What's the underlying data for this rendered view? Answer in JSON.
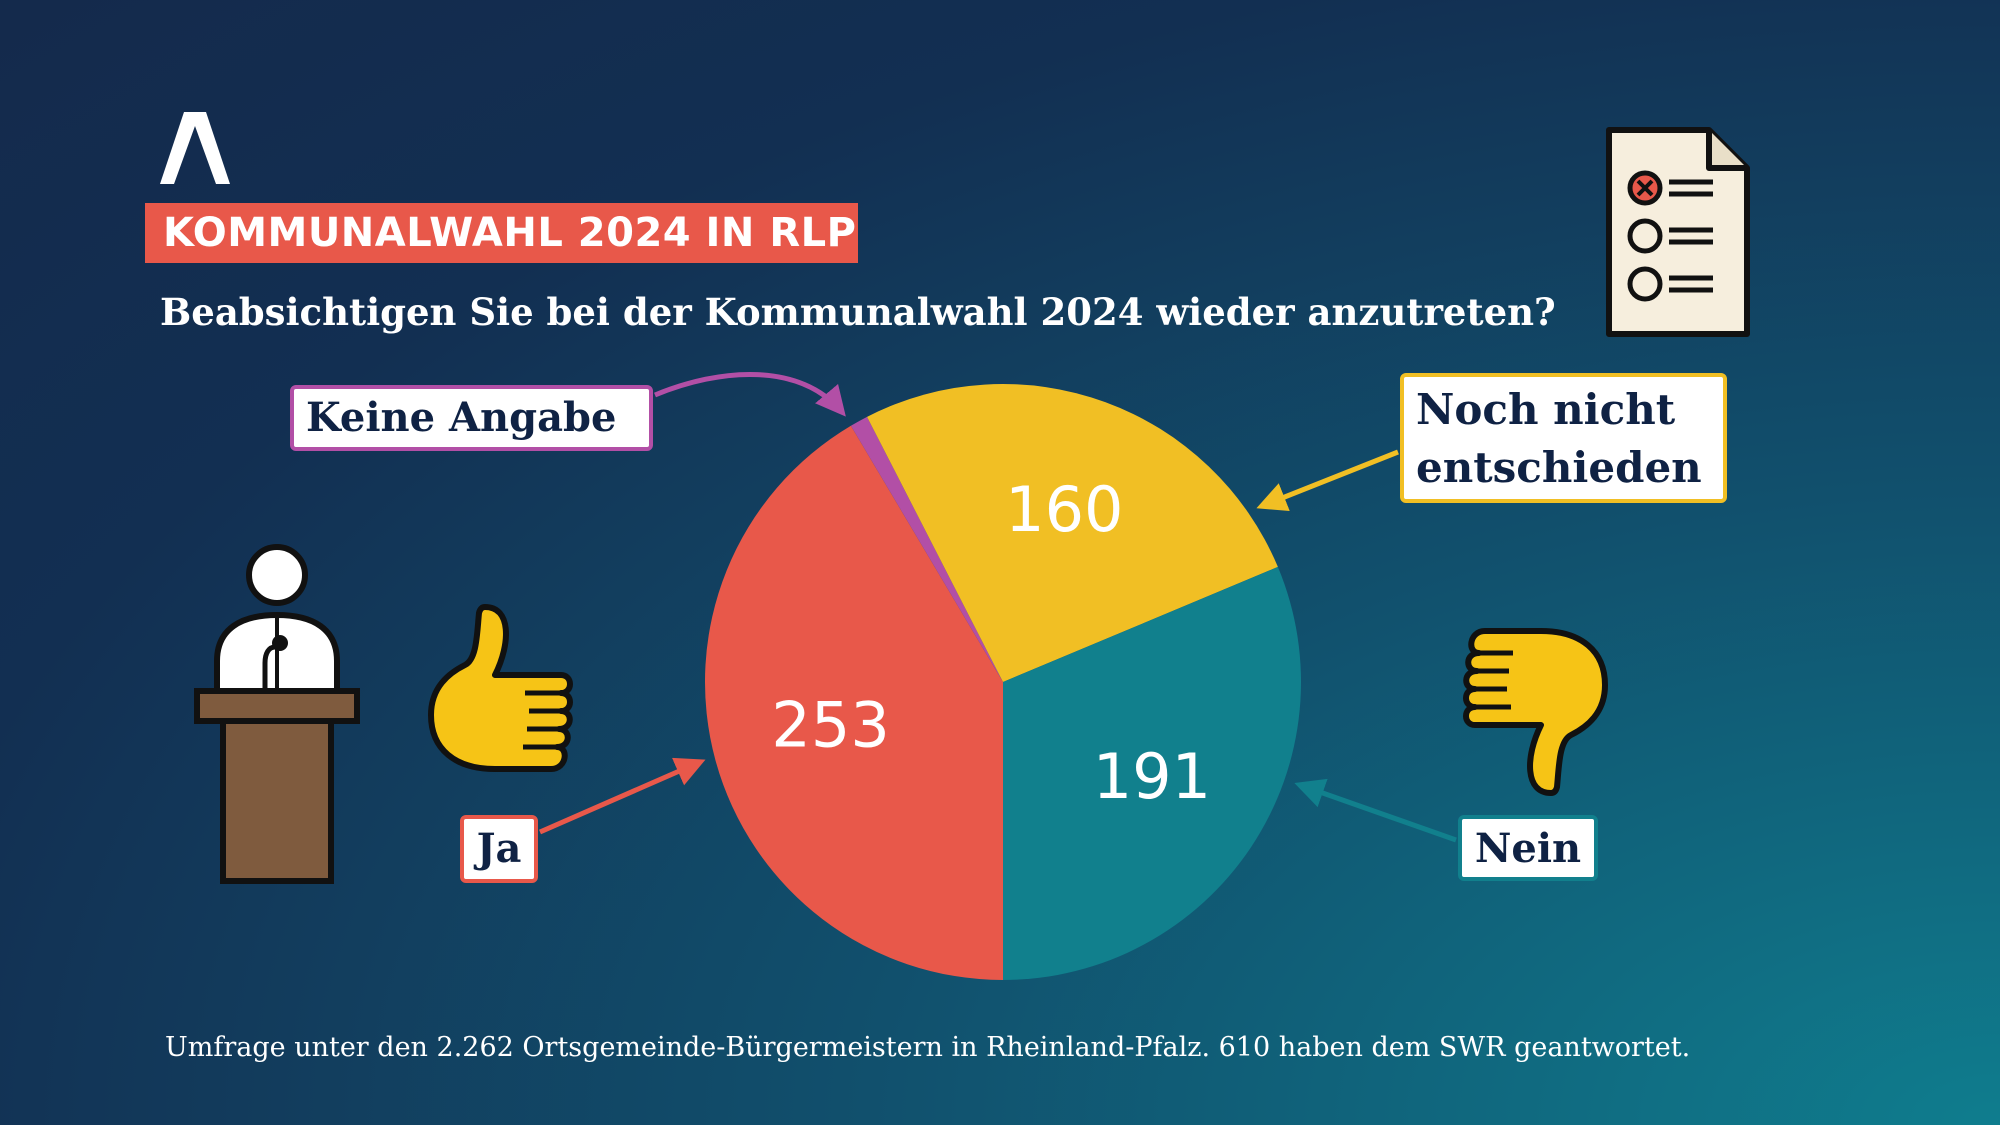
{
  "header": {
    "badge": "KOMMUNALWAHL 2024 IN RLP",
    "question": "Beabsichtigen Sie bei der Kommunalwahl 2024 wieder anzutreten?"
  },
  "footnote": "Umfrage unter den 2.262 Ortsgemeinde-Bürgermeistern in Rheinland-Pfalz. 610 haben dem SWR geantwortet.",
  "chart_data": {
    "type": "pie",
    "title": "",
    "slices": [
      {
        "label": "Ja",
        "value": 253,
        "value_label": "253",
        "color": "#e8584a"
      },
      {
        "label": "Keine Angabe",
        "value": 6,
        "value_label": "",
        "color": "#b24fa6"
      },
      {
        "label": "Noch nicht entschieden",
        "value": 160,
        "value_label": "160",
        "color": "#f1bf24"
      },
      {
        "label": "Nein",
        "value": 191,
        "value_label": "191",
        "color": "#11808d"
      }
    ]
  },
  "icons": [
    "logo-icon",
    "ballot-paper-icon",
    "speaker-podium-icon",
    "thumbs-up-icon",
    "thumbs-down-icon"
  ],
  "colors": {
    "accent": "#e8584a",
    "background": "#13335a"
  }
}
